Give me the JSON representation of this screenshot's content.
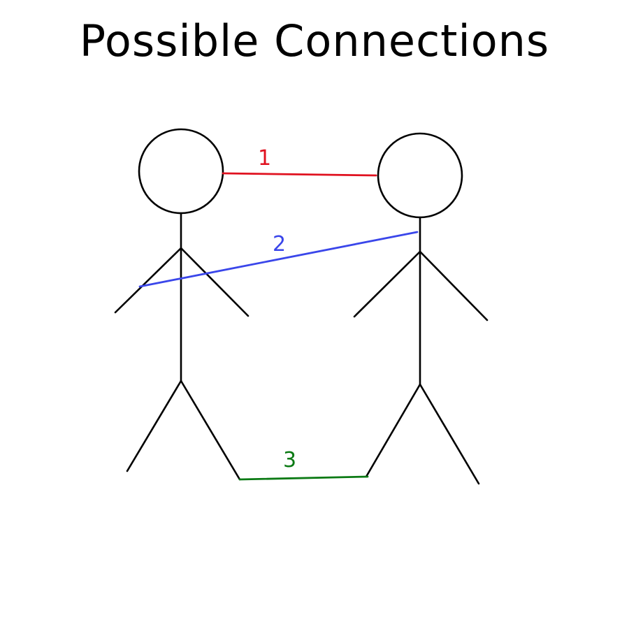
{
  "title": "Possible Connections",
  "figures": [
    {
      "name": "left"
    },
    {
      "name": "right"
    }
  ],
  "connections": [
    {
      "label": "1",
      "color": "#e0111f"
    },
    {
      "label": "2",
      "color": "#3a46ea"
    },
    {
      "label": "3",
      "color": "#0b7a14"
    }
  ]
}
